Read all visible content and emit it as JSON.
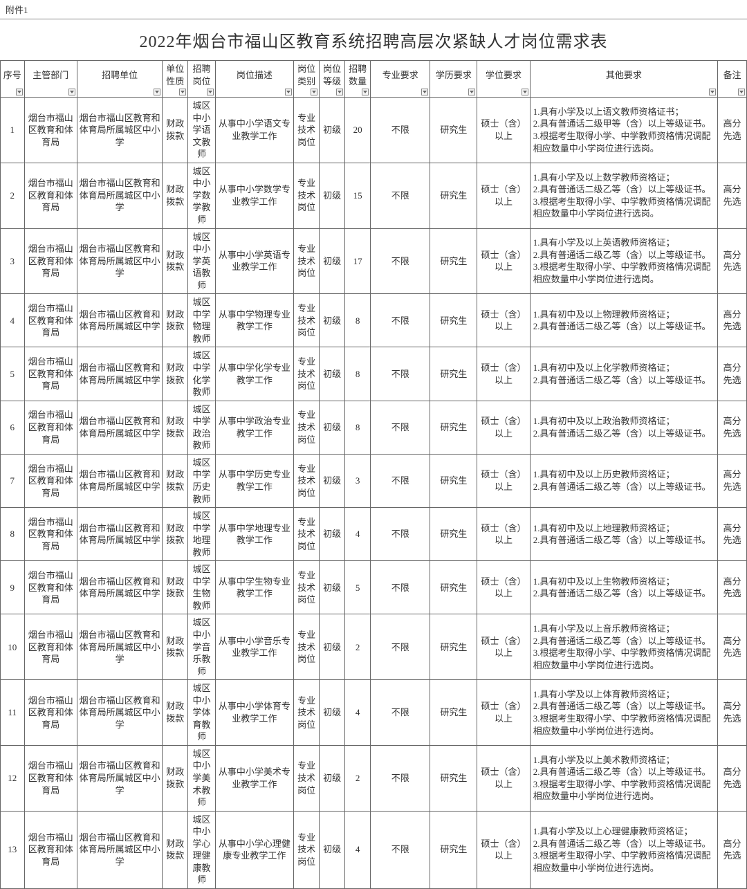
{
  "attachment_label": "附件1",
  "title": "2022年烟台市福山区教育系统招聘高层次紧缺人才岗位需求表",
  "columns": [
    {
      "key": "seq",
      "label": "序号",
      "width": "col-seq",
      "filter": true
    },
    {
      "key": "dept",
      "label": "主管部门",
      "width": "col-dept",
      "filter": true
    },
    {
      "key": "unit",
      "label": "招聘单位",
      "width": "col-unit",
      "filter": true
    },
    {
      "key": "nature",
      "label": "单位性质",
      "width": "col-nature",
      "filter": true
    },
    {
      "key": "position",
      "label": "招聘岗位",
      "width": "col-position",
      "filter": true
    },
    {
      "key": "desc",
      "label": "岗位描述",
      "width": "col-desc",
      "filter": true
    },
    {
      "key": "cat",
      "label": "岗位类别",
      "width": "col-cat",
      "filter": true
    },
    {
      "key": "level",
      "label": "岗位等级",
      "width": "col-level",
      "filter": true
    },
    {
      "key": "count",
      "label": "招聘数量",
      "width": "col-count",
      "filter": true
    },
    {
      "key": "major",
      "label": "专业要求",
      "width": "col-major",
      "filter": true
    },
    {
      "key": "edu",
      "label": "学历要求",
      "width": "col-edu",
      "filter": true
    },
    {
      "key": "degree",
      "label": "学位要求",
      "width": "col-degree",
      "filter": true
    },
    {
      "key": "other",
      "label": "其他要求",
      "width": "col-other",
      "filter": true
    },
    {
      "key": "remark",
      "label": "备注",
      "width": "col-remark",
      "filter": true
    }
  ],
  "common": {
    "dept": "烟台市福山区教育和体育局",
    "nature": "财政拨款",
    "cat": "专业技术岗位",
    "level": "初级",
    "major": "不限",
    "edu": "研究生",
    "degree": "硕士（含）以上",
    "remark": "高分先选"
  },
  "rows": [
    {
      "seq": "1",
      "unit": "烟台市福山区教育和体育局所属城区中小学",
      "position": "城区中小学语文教师",
      "desc": "从事中小学语文专业教学工作",
      "count": "20",
      "other": "1.具有小学及以上语文教师资格证书；\n2.具有普通话二级甲等（含）以上等级证书。\n3.根据考生取得小学、中学教师资格情况调配相应数量中小学岗位进行选岗。"
    },
    {
      "seq": "2",
      "unit": "烟台市福山区教育和体育局所属城区中小学",
      "position": "城区中小学数学教师",
      "desc": "从事中小学数学专业教学工作",
      "count": "15",
      "other": "1.具有小学及以上数学教师资格证；\n2.具有普通话二级乙等（含）以上等级证书。\n3.根据考生取得小学、中学教师资格情况调配相应数量中小学岗位进行选岗。"
    },
    {
      "seq": "3",
      "unit": "烟台市福山区教育和体育局所属城区中小学",
      "position": "城区中小学英语教师",
      "desc": "从事中小学英语专业教学工作",
      "count": "17",
      "other": "1.具有小学及以上英语教师资格证；\n2.具有普通话二级乙等（含）以上等级证书。\n3.根据考生取得小学、中学教师资格情况调配相应数量中小学岗位进行选岗。"
    },
    {
      "seq": "4",
      "unit": "烟台市福山区教育和体育局所属城区中学",
      "position": "城区中学物理教师",
      "desc": "从事中学物理专业教学工作",
      "count": "8",
      "other": "1.具有初中及以上物理教师资格证；\n2.具有普通话二级乙等（含）以上等级证书。"
    },
    {
      "seq": "5",
      "unit": "烟台市福山区教育和体育局所属城区中学",
      "position": "城区中学化学教师",
      "desc": "从事中学化学专业教学工作",
      "count": "8",
      "other": "1.具有初中及以上化学教师资格证；\n2.具有普通话二级乙等（含）以上等级证书。"
    },
    {
      "seq": "6",
      "unit": "烟台市福山区教育和体育局所属城区中学",
      "position": "城区中学政治教师",
      "desc": "从事中学政治专业教学工作",
      "count": "8",
      "other": "1.具有初中及以上政治教师资格证；\n2.具有普通话二级乙等（含）以上等级证书。"
    },
    {
      "seq": "7",
      "unit": "烟台市福山区教育和体育局所属城区中学",
      "position": "城区中学历史教师",
      "desc": "从事中学历史专业教学工作",
      "count": "3",
      "other": "1.具有初中及以上历史教师资格证；\n2.具有普通话二级乙等（含）以上等级证书。"
    },
    {
      "seq": "8",
      "unit": "烟台市福山区教育和体育局所属城区中学",
      "position": "城区中学地理教师",
      "desc": "从事中学地理专业教学工作",
      "count": "4",
      "other": "1.具有初中及以上地理教师资格证；\n2.具有普通话二级乙等（含）以上等级证书。"
    },
    {
      "seq": "9",
      "unit": "烟台市福山区教育和体育局所属城区中学",
      "position": "城区中学生物教师",
      "desc": "从事中学生物专业教学工作",
      "count": "5",
      "other": "1.具有初中及以上生物教师资格证；\n2.具有普通话二级乙等（含）以上等级证书。"
    },
    {
      "seq": "10",
      "unit": "烟台市福山区教育和体育局所属城区中小学",
      "position": "城区中小学音乐教师",
      "desc": "从事中小学音乐专业教学工作",
      "count": "2",
      "other": "1.具有小学及以上音乐教师资格证；\n2.具有普通话二级乙等（含）以上等级证书。\n3.根据考生取得小学、中学教师资格情况调配相应数量中小学岗位进行选岗。"
    },
    {
      "seq": "11",
      "unit": "烟台市福山区教育和体育局所属城区中小学",
      "position": "城区中小学体育教师",
      "desc": "从事中小学体育专业教学工作",
      "count": "4",
      "other": "1.具有小学及以上体育教师资格证；\n2.具有普通话二级乙等（含）以上等级证书。\n3.根据考生取得小学、中学教师资格情况调配相应数量中小学岗位进行选岗。"
    },
    {
      "seq": "12",
      "unit": "烟台市福山区教育和体育局所属城区中小学",
      "position": "城区中小学美术教师",
      "desc": "从事中小学美术专业教学工作",
      "count": "2",
      "other": "1.具有小学及以上美术教师资格证；\n2.具有普通话二级乙等（含）以上等级证书。\n3.根据考生取得小学、中学教师资格情况调配相应数量中小学岗位进行选岗。"
    },
    {
      "seq": "13",
      "unit": "烟台市福山区教育和体育局所属城区中小学",
      "position": "城区中小学心理健康教师",
      "desc": "从事中小学心理健康专业教学工作",
      "count": "4",
      "other": "1.具有小学及以上心理健康教师资格证；\n2.具有普通话二级乙等（含）以上等级证书。\n3.根据考生取得小学、中学教师资格情况调配相应数量中小学岗位进行选岗。"
    }
  ],
  "colors": {
    "border": "#666666",
    "text": "#333333",
    "background": "#ffffff"
  }
}
